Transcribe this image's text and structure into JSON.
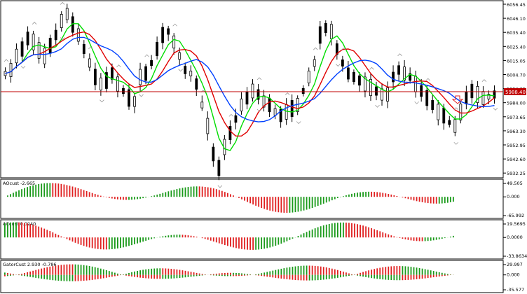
{
  "main": {
    "y_labels": [
      "6056.45",
      "6046.10",
      "6035.40",
      "6025.40",
      "6015.05",
      "6004.70",
      "5994.35",
      "5984.00",
      "5973.65",
      "5963.30",
      "5952.95",
      "5942.60",
      "5932.25"
    ],
    "current_price": "5988.40",
    "colors": {
      "bull": "#000000",
      "bear": "#000000",
      "ma_fast": "#00dd00",
      "ma_mid": "#e00000",
      "ma_slow": "#0040ff",
      "hline": "#c00000",
      "arrow": "#e02020"
    }
  },
  "panels": [
    {
      "title": "AOcust -2.665",
      "labels": [
        "49.505",
        "0.000",
        "-65.992"
      ]
    },
    {
      "title": "ACcust 0.0240",
      "labels": [
        "19.5695",
        "0.0000",
        "-33.8634"
      ]
    },
    {
      "title": "GatorCust 2.930 -0.786",
      "labels": [
        "29.997",
        "0.000",
        "-35.577"
      ]
    }
  ]
}
